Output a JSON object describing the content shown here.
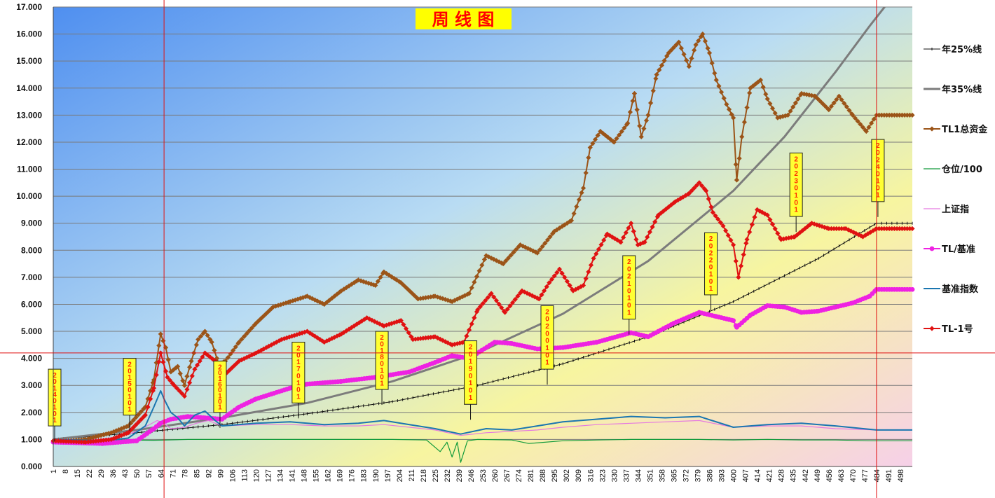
{
  "chart_data": {
    "type": "line",
    "title": "周 线 图",
    "ylim": [
      0,
      17
    ],
    "xlim": [
      1,
      505
    ],
    "yticks": [
      0,
      1,
      2,
      3,
      4,
      5,
      6,
      7,
      8,
      9,
      10,
      11,
      12,
      13,
      14,
      15,
      16,
      17
    ],
    "ytick_labels": [
      "0.000",
      "1.000",
      "2.000",
      "3.000",
      "4.000",
      "5.000",
      "6.000",
      "7.000",
      "8.000",
      "9.000",
      "10.000",
      "11.000",
      "12.000",
      "13.000",
      "14.000",
      "15.000",
      "16.000",
      "17.000"
    ],
    "xticks": [
      1,
      8,
      15,
      22,
      29,
      36,
      43,
      50,
      57,
      64,
      71,
      78,
      85,
      92,
      99,
      106,
      113,
      120,
      127,
      134,
      141,
      148,
      155,
      162,
      169,
      176,
      183,
      190,
      197,
      204,
      211,
      218,
      225,
      232,
      239,
      246,
      253,
      260,
      267,
      274,
      281,
      288,
      295,
      302,
      309,
      316,
      323,
      330,
      337,
      344,
      351,
      358,
      365,
      372,
      379,
      386,
      393,
      400,
      407,
      414,
      421,
      428,
      435,
      442,
      449,
      456,
      463,
      470,
      477,
      484,
      491,
      498
    ],
    "grid": true,
    "legend_position": "right",
    "colors": {
      "background_top_left": "#4f8ff0",
      "background_middle": "#f7f5a0",
      "background_bottom_right": "#f6d0e8",
      "grid": "#7a7a7a",
      "crosshair": "#e01010",
      "title_box": "#ffff00",
      "title_text": "#ff0000",
      "date_box": "#ffff33"
    },
    "crosshair": {
      "x": 66,
      "y": 4.2,
      "x2": 484
    },
    "series": [
      {
        "name": "年25%线",
        "color": "#111111",
        "width": 1,
        "marker": "tick",
        "x": [
          1,
          50,
          100,
          150,
          200,
          250,
          300,
          350,
          400,
          450,
          484,
          505
        ],
        "y": [
          1.0,
          1.25,
          1.55,
          1.95,
          2.4,
          3.0,
          3.8,
          4.8,
          6.1,
          7.7,
          9.0,
          9.0
        ]
      },
      {
        "name": "年35%线",
        "color": "#7c7c7c",
        "width": 3,
        "marker": "none",
        "x": [
          1,
          50,
          100,
          150,
          200,
          250,
          300,
          350,
          400,
          430,
          460,
          480,
          490
        ],
        "y": [
          1.0,
          1.35,
          1.8,
          2.35,
          3.15,
          4.2,
          5.65,
          7.6,
          10.2,
          12.2,
          14.6,
          16.3,
          17.1
        ]
      },
      {
        "name": "TL1总资金",
        "color": "#9b5418",
        "width": 2,
        "marker": "diamond",
        "x": [
          1,
          20,
          35,
          45,
          55,
          60,
          64,
          67,
          70,
          74,
          78,
          82,
          86,
          90,
          94,
          98,
          102,
          110,
          120,
          130,
          140,
          150,
          160,
          170,
          180,
          190,
          195,
          205,
          215,
          225,
          235,
          245,
          255,
          265,
          275,
          285,
          295,
          305,
          312,
          316,
          322,
          330,
          338,
          342,
          346,
          350,
          355,
          362,
          368,
          374,
          378,
          382,
          386,
          390,
          396,
          400,
          402,
          405,
          410,
          416,
          420,
          426,
          432,
          440,
          448,
          456,
          462,
          470,
          478,
          484,
          505
        ],
        "y": [
          0.9,
          1.0,
          1.25,
          1.5,
          2.2,
          3.2,
          4.9,
          4.4,
          3.5,
          3.7,
          3.0,
          3.9,
          4.7,
          5.0,
          4.6,
          3.8,
          3.9,
          4.6,
          5.3,
          5.9,
          6.1,
          6.3,
          6.0,
          6.5,
          6.9,
          6.7,
          7.2,
          6.8,
          6.2,
          6.3,
          6.1,
          6.4,
          7.8,
          7.5,
          8.2,
          7.9,
          8.7,
          9.1,
          10.3,
          11.8,
          12.4,
          12.0,
          12.7,
          13.8,
          12.2,
          13.0,
          14.5,
          15.3,
          15.7,
          14.8,
          15.6,
          16.0,
          15.3,
          14.3,
          13.4,
          12.9,
          10.6,
          12.2,
          14.0,
          14.3,
          13.6,
          12.9,
          13.0,
          13.8,
          13.7,
          13.2,
          13.7,
          13.0,
          12.4,
          13.0,
          13.0
        ]
      },
      {
        "name": "仓位/100",
        "color": "#139b3c",
        "width": 1.2,
        "marker": "none",
        "x": [
          1,
          20,
          40,
          60,
          80,
          100,
          120,
          140,
          160,
          180,
          200,
          220,
          228,
          232,
          235,
          238,
          240,
          244,
          250,
          270,
          280,
          300,
          320,
          340,
          360,
          380,
          400,
          420,
          440,
          460,
          480,
          505
        ],
        "y": [
          0.98,
          0.96,
          0.98,
          0.97,
          1.0,
          1.0,
          1.0,
          1.0,
          1.0,
          1.0,
          1.0,
          0.98,
          0.55,
          0.9,
          0.35,
          0.9,
          0.15,
          0.95,
          1.0,
          0.98,
          0.85,
          0.95,
          0.98,
          1.0,
          1.0,
          1.0,
          0.98,
          1.0,
          0.98,
          0.98,
          0.95,
          0.95
        ]
      },
      {
        "name": "上证指",
        "color": "#e57ae0",
        "width": 1.2,
        "marker": "none",
        "x": [
          1,
          20,
          40,
          50,
          56,
          62,
          66,
          70,
          78,
          85,
          92,
          100,
          120,
          140,
          160,
          180,
          195,
          210,
          225,
          240,
          255,
          270,
          285,
          300,
          320,
          340,
          360,
          380,
          400,
          420,
          440,
          460,
          484,
          505
        ],
        "y": [
          1.0,
          0.95,
          1.1,
          1.3,
          1.5,
          1.7,
          1.6,
          1.4,
          1.45,
          1.6,
          1.7,
          1.5,
          1.55,
          1.55,
          1.5,
          1.5,
          1.55,
          1.45,
          1.35,
          1.15,
          1.25,
          1.3,
          1.35,
          1.45,
          1.55,
          1.6,
          1.65,
          1.7,
          1.45,
          1.5,
          1.5,
          1.4,
          1.35,
          1.35
        ]
      },
      {
        "name": "TL/基准",
        "color": "#ee22e2",
        "width": 2,
        "marker": "circle",
        "x": [
          1,
          30,
          50,
          60,
          64,
          70,
          80,
          90,
          100,
          110,
          120,
          140,
          150,
          170,
          190,
          210,
          225,
          235,
          245,
          260,
          270,
          285,
          300,
          320,
          340,
          350,
          365,
          380,
          390,
          400,
          402,
          410,
          420,
          430,
          440,
          450,
          460,
          470,
          480,
          484,
          505
        ],
        "y": [
          0.9,
          0.85,
          0.95,
          1.4,
          1.6,
          1.75,
          1.85,
          1.8,
          1.75,
          2.2,
          2.5,
          2.9,
          3.05,
          3.15,
          3.3,
          3.5,
          3.85,
          4.1,
          4.0,
          4.6,
          4.55,
          4.35,
          4.4,
          4.6,
          4.95,
          4.8,
          5.3,
          5.7,
          5.55,
          5.4,
          5.15,
          5.6,
          5.95,
          5.9,
          5.7,
          5.75,
          5.9,
          6.05,
          6.3,
          6.55,
          6.55
        ]
      },
      {
        "name": "基准指数",
        "color": "#1b76b0",
        "width": 2,
        "marker": "none",
        "x": [
          1,
          30,
          45,
          55,
          60,
          64,
          66,
          70,
          74,
          78,
          84,
          90,
          96,
          100,
          120,
          140,
          160,
          180,
          195,
          210,
          225,
          240,
          255,
          270,
          285,
          300,
          320,
          340,
          360,
          380,
          400,
          420,
          440,
          460,
          484,
          505
        ],
        "y": [
          1.0,
          0.95,
          1.05,
          1.5,
          2.2,
          2.8,
          2.5,
          2.0,
          1.8,
          1.5,
          1.9,
          2.05,
          1.7,
          1.5,
          1.6,
          1.65,
          1.55,
          1.6,
          1.7,
          1.55,
          1.4,
          1.2,
          1.4,
          1.35,
          1.5,
          1.65,
          1.75,
          1.85,
          1.8,
          1.85,
          1.45,
          1.55,
          1.6,
          1.5,
          1.35,
          1.35
        ]
      },
      {
        "name": "TL-1号",
        "color": "#e01212",
        "width": 2,
        "marker": "diamond",
        "x": [
          1,
          20,
          35,
          45,
          55,
          60,
          64,
          68,
          72,
          78,
          84,
          90,
          96,
          100,
          110,
          120,
          135,
          150,
          160,
          170,
          185,
          195,
          205,
          212,
          225,
          235,
          242,
          250,
          258,
          266,
          276,
          286,
          292,
          298,
          306,
          312,
          318,
          326,
          334,
          340,
          344,
          348,
          356,
          366,
          374,
          380,
          384,
          388,
          394,
          400,
          403,
          408,
          414,
          420,
          428,
          436,
          446,
          456,
          466,
          476,
          484,
          505
        ],
        "y": [
          0.95,
          0.9,
          1.0,
          1.25,
          1.9,
          2.9,
          4.2,
          3.3,
          3.0,
          2.6,
          3.6,
          4.2,
          3.9,
          3.3,
          3.9,
          4.2,
          4.7,
          5.0,
          4.6,
          4.9,
          5.5,
          5.2,
          5.4,
          4.7,
          4.8,
          4.5,
          4.6,
          5.8,
          6.4,
          5.7,
          6.5,
          6.2,
          6.8,
          7.3,
          6.5,
          6.7,
          7.7,
          8.6,
          8.3,
          9.0,
          8.2,
          8.3,
          9.3,
          9.8,
          10.1,
          10.5,
          10.2,
          9.4,
          8.9,
          8.2,
          7.0,
          8.4,
          9.5,
          9.3,
          8.4,
          8.5,
          9.0,
          8.8,
          8.8,
          8.5,
          8.8,
          8.8
        ]
      }
    ],
    "date_labels": [
      {
        "text": "20140101",
        "x": 1,
        "y_top": 3.6,
        "y_bottom": 1.5
      },
      {
        "text": "20150101",
        "x": 45,
        "y_top": 4.0,
        "y_bottom": 1.9
      },
      {
        "text": "20160101",
        "x": 98,
        "y_top": 3.9,
        "y_bottom": 2.0
      },
      {
        "text": "20170101",
        "x": 144,
        "y_top": 4.6,
        "y_bottom": 2.35
      },
      {
        "text": "20180101",
        "x": 193,
        "y_top": 5.0,
        "y_bottom": 2.85
      },
      {
        "text": "20190101",
        "x": 245,
        "y_top": 4.65,
        "y_bottom": 2.3
      },
      {
        "text": "20200101",
        "x": 290,
        "y_top": 5.95,
        "y_bottom": 3.6
      },
      {
        "text": "20210101",
        "x": 338,
        "y_top": 7.8,
        "y_bottom": 5.45
      },
      {
        "text": "20220101",
        "x": 386,
        "y_top": 8.65,
        "y_bottom": 6.35
      },
      {
        "text": "20230101",
        "x": 436,
        "y_top": 11.6,
        "y_bottom": 9.25
      },
      {
        "text": "20240101",
        "x": 484,
        "y_top": 12.1,
        "y_bottom": 9.8
      }
    ]
  }
}
